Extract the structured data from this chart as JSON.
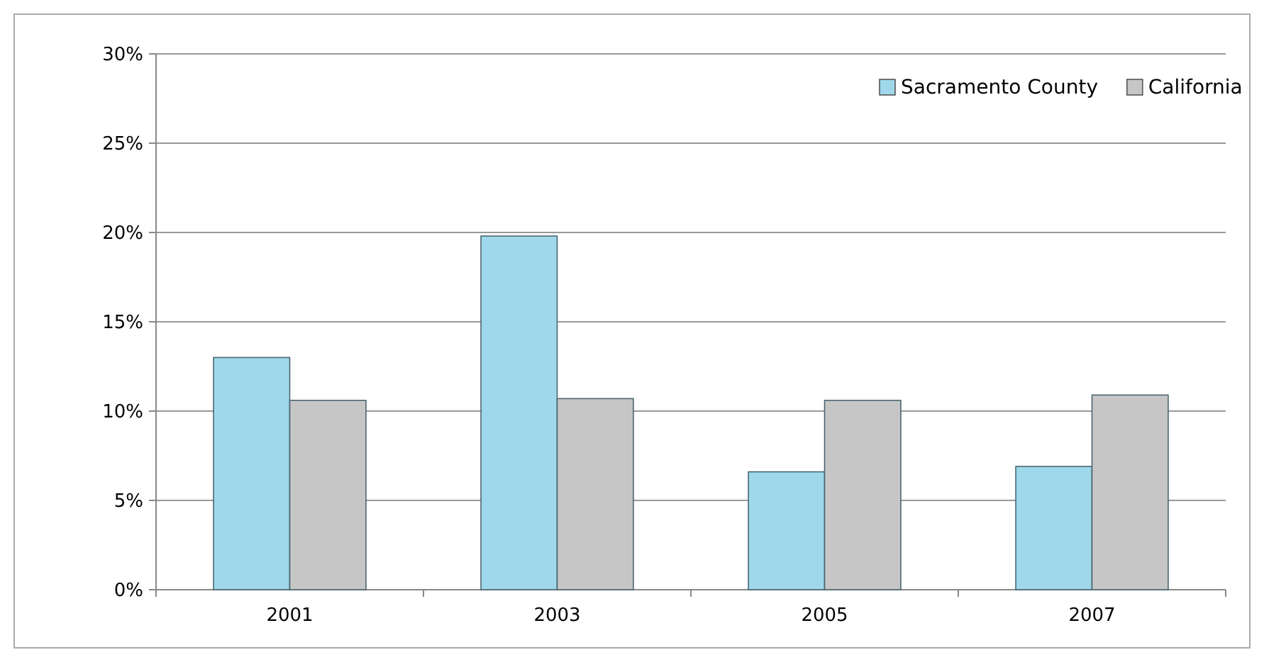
{
  "chart_data": {
    "type": "bar",
    "categories": [
      "2001",
      "2003",
      "2005",
      "2007"
    ],
    "series": [
      {
        "name": "Sacramento County",
        "color": "#9fd8ea",
        "values": [
          13.0,
          19.8,
          6.6,
          6.9
        ]
      },
      {
        "name": "California",
        "color": "#c6c6c6",
        "values": [
          10.6,
          10.7,
          10.6,
          10.9
        ]
      }
    ],
    "ylim": [
      0,
      30
    ],
    "yticks": [
      {
        "value": 0,
        "label": "0%"
      },
      {
        "value": 5,
        "label": "5%"
      },
      {
        "value": 10,
        "label": "10%"
      },
      {
        "value": 15,
        "label": "15%"
      },
      {
        "value": 20,
        "label": "20%"
      },
      {
        "value": 25,
        "label": "25%"
      },
      {
        "value": 30,
        "label": "30%"
      }
    ],
    "grid": "y",
    "legend": "top right"
  }
}
